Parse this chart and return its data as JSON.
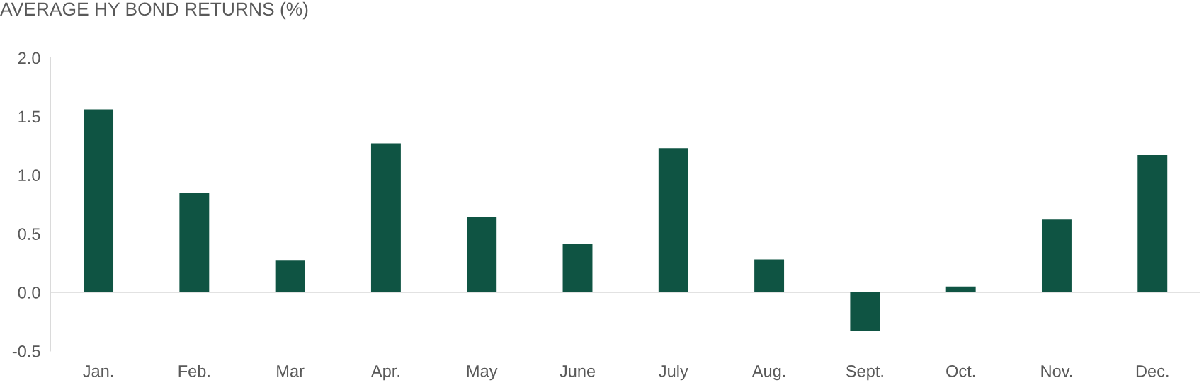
{
  "chart_data": {
    "type": "bar",
    "title": "AVERAGE HY BOND RETURNS (%)",
    "categories": [
      "Jan.",
      "Feb.",
      "Mar",
      "Apr.",
      "May",
      "June",
      "July",
      "Aug.",
      "Sept.",
      "Oct.",
      "Nov.",
      "Dec."
    ],
    "values": [
      1.56,
      0.85,
      0.27,
      1.27,
      0.64,
      0.41,
      1.23,
      0.28,
      -0.33,
      0.05,
      0.62,
      1.17
    ],
    "color": "#0f5443",
    "ylim": [
      -0.5,
      2.0
    ],
    "yticks": [
      {
        "value": -0.5,
        "label": "-0.5"
      },
      {
        "value": 0.0,
        "label": "0.0"
      },
      {
        "value": 0.5,
        "label": "0.5"
      },
      {
        "value": 1.0,
        "label": "1.0"
      },
      {
        "value": 1.5,
        "label": "1.5"
      },
      {
        "value": 2.0,
        "label": "2.0"
      }
    ],
    "ref_lines": [
      {
        "axis": "y",
        "value": 0.0,
        "color": "#d9d9d9"
      }
    ],
    "grid": false,
    "legend": false
  }
}
